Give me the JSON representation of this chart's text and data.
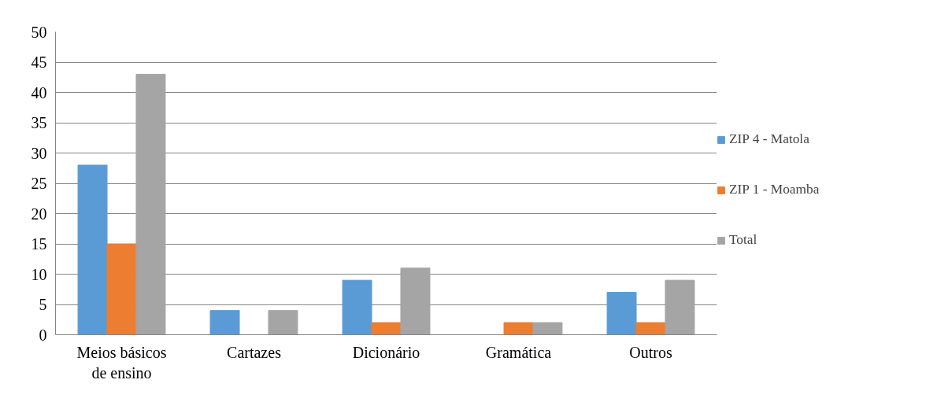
{
  "chart_data": {
    "type": "bar",
    "categories": [
      "Meios básicos\nde ensino",
      "Cartazes",
      "Dicionário",
      "Gramática",
      "Outros"
    ],
    "series": [
      {
        "name": "ZIP 4 - Matola",
        "color": "#5b9bd5",
        "values": [
          28,
          4,
          9,
          0,
          7
        ]
      },
      {
        "name": "ZIP 1 - Moamba",
        "color": "#ed7d31",
        "values": [
          15,
          0,
          2,
          2,
          2
        ]
      },
      {
        "name": "Total",
        "color": "#a5a5a5",
        "values": [
          43,
          4,
          11,
          2,
          9
        ]
      }
    ],
    "ylim": [
      0,
      50
    ],
    "yticks": [
      0,
      5,
      10,
      15,
      20,
      25,
      30,
      35,
      40,
      45,
      50
    ],
    "grid": "y",
    "legend": "right"
  }
}
